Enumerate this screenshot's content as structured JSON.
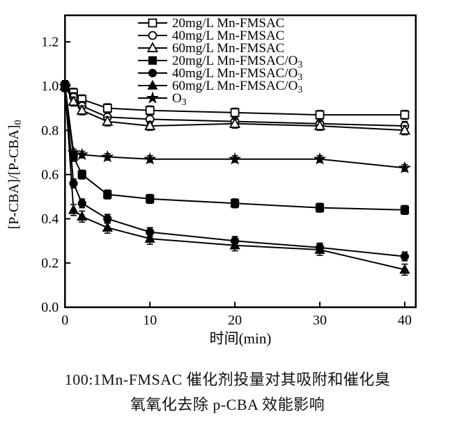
{
  "figure": {
    "caption_line1": "100:1Mn-FMSAC 催化剂投量对其吸附和催化臭",
    "caption_line2": "氧氧化去除 p-CBA 效能影响"
  },
  "chart_data": {
    "type": "line",
    "title": "",
    "xlabel": "时间(min)",
    "ylabel": "[P-CBA]/[P-CBA]₀",
    "xlim": [
      0,
      41.3
    ],
    "ylim": [
      0,
      1.32
    ],
    "x_ticks": [
      0,
      10,
      20,
      30,
      40
    ],
    "y_ticks": [
      "0.0",
      "0.2",
      "0.4",
      "0.6",
      "0.8",
      "1.0",
      "1.2"
    ],
    "grid": false,
    "legend_position": "top-inside",
    "error_bars": true,
    "x": [
      0,
      1,
      2,
      5,
      10,
      20,
      30,
      40
    ],
    "series": [
      {
        "name": "20mg/L Mn-FMSAC",
        "marker": "square",
        "fill": "open",
        "values": [
          1.0,
          0.97,
          0.94,
          0.9,
          0.89,
          0.88,
          0.87,
          0.87
        ],
        "error": 0.02
      },
      {
        "name": "40mg/L Mn-FMSAC",
        "marker": "circle",
        "fill": "open",
        "values": [
          1.0,
          0.95,
          0.91,
          0.86,
          0.85,
          0.84,
          0.83,
          0.82
        ],
        "error": 0.02
      },
      {
        "name": "60mg/L Mn-FMSAC",
        "marker": "triangle",
        "fill": "open",
        "values": [
          1.0,
          0.93,
          0.89,
          0.84,
          0.82,
          0.83,
          0.82,
          0.8
        ],
        "error": 0.02
      },
      {
        "name": "20mg/L Mn-FMSAC/O₃",
        "marker": "square",
        "fill": "solid",
        "values": [
          1.0,
          0.68,
          0.6,
          0.51,
          0.49,
          0.47,
          0.45,
          0.44
        ],
        "error": 0.02
      },
      {
        "name": "40mg/L Mn-FMSAC/O₃",
        "marker": "circle",
        "fill": "solid",
        "values": [
          1.0,
          0.56,
          0.47,
          0.4,
          0.34,
          0.3,
          0.27,
          0.23
        ],
        "error": 0.02
      },
      {
        "name": "60mg/L Mn-FMSAC/O₃",
        "marker": "triangle",
        "fill": "solid",
        "values": [
          1.0,
          0.44,
          0.41,
          0.36,
          0.31,
          0.28,
          0.26,
          0.17
        ],
        "error": 0.025
      },
      {
        "name": "O₃",
        "marker": "star",
        "fill": "solid",
        "values": [
          1.0,
          0.7,
          0.69,
          0.68,
          0.67,
          0.67,
          0.67,
          0.63
        ],
        "error": 0.015
      }
    ],
    "colors": {
      "line": "#000000",
      "background": "#ffffff"
    }
  }
}
